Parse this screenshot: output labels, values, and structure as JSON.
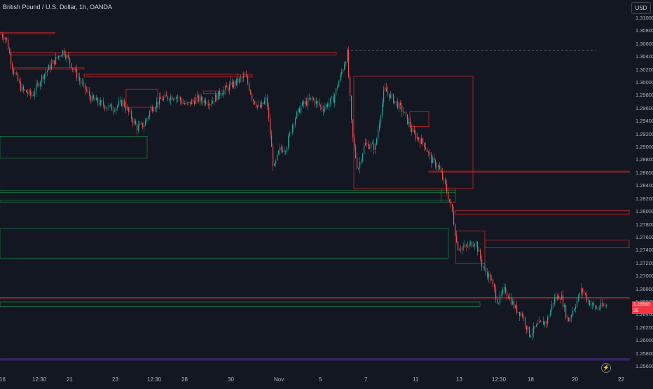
{
  "symbol_title": "British Pound / U.S. Dollar, 1h, OANDA",
  "currency": "USD",
  "current_price": "1.26568",
  "current_price_sub": "25",
  "bolt_icon": "lightning-icon",
  "colors": {
    "background": "#131722",
    "up": "#26a69a",
    "down": "#ef5350",
    "zone_red": "#e53935",
    "zone_green": "#1b8a4c",
    "bottom_line": "#5e35b1"
  },
  "chart_data": {
    "type": "candlestick",
    "title": "British Pound / U.S. Dollar, 1h, OANDA",
    "ylabel": "USD",
    "ylim": [
      1.2545,
      1.3125
    ],
    "y_ticks": [
      "1.31000",
      "1.30800",
      "1.30600",
      "1.30400",
      "1.30200",
      "1.30000",
      "1.29800",
      "1.29600",
      "1.29400",
      "1.29200",
      "1.29000",
      "1.28800",
      "1.28600",
      "1.28400",
      "1.28200",
      "1.28000",
      "1.27800",
      "1.27600",
      "1.27400",
      "1.27200",
      "1.27000",
      "1.26800",
      "1.26600",
      "1.26400",
      "1.26200",
      "1.26000",
      "1.25800",
      "1.25600"
    ],
    "x_ticks": [
      "16",
      "12:30",
      "21",
      "23",
      "12:30",
      "28",
      "30",
      "Nov",
      "5",
      "7",
      "11",
      "13",
      "12:30",
      "18",
      "20",
      "22"
    ],
    "grid": false,
    "trend_path": [
      [
        0,
        1.3075
      ],
      [
        8,
        1.307
      ],
      [
        18,
        1.302
      ],
      [
        30,
        1.299
      ],
      [
        45,
        1.298
      ],
      [
        60,
        1.301
      ],
      [
        78,
        1.3035
      ],
      [
        90,
        1.305
      ],
      [
        100,
        1.303
      ],
      [
        115,
        1.3
      ],
      [
        130,
        1.2975
      ],
      [
        148,
        1.2965
      ],
      [
        160,
        1.296
      ],
      [
        175,
        1.297
      ],
      [
        185,
        1.295
      ],
      [
        195,
        1.293
      ],
      [
        205,
        1.2935
      ],
      [
        215,
        1.296
      ],
      [
        230,
        1.2975
      ],
      [
        250,
        1.298
      ],
      [
        265,
        1.2965
      ],
      [
        280,
        1.2975
      ],
      [
        300,
        1.297
      ],
      [
        315,
        1.2985
      ],
      [
        335,
        1.3
      ],
      [
        350,
        1.301
      ],
      [
        360,
        1.2975
      ],
      [
        370,
        1.296
      ],
      [
        380,
        1.2975
      ],
      [
        390,
        1.2865
      ],
      [
        398,
        1.2895
      ],
      [
        408,
        1.29
      ],
      [
        418,
        1.294
      ],
      [
        430,
        1.2965
      ],
      [
        445,
        1.2975
      ],
      [
        460,
        1.296
      ],
      [
        475,
        1.2975
      ],
      [
        488,
        1.302
      ],
      [
        495,
        1.3045
      ],
      [
        502,
        1.292
      ],
      [
        510,
        1.2865
      ],
      [
        520,
        1.2905
      ],
      [
        535,
        1.29
      ],
      [
        548,
        1.299
      ],
      [
        560,
        1.2975
      ],
      [
        575,
        1.2955
      ],
      [
        590,
        1.292
      ],
      [
        605,
        1.2905
      ],
      [
        615,
        1.288
      ],
      [
        625,
        1.287
      ],
      [
        635,
        1.284
      ],
      [
        645,
        1.28
      ],
      [
        652,
        1.2745
      ],
      [
        665,
        1.2745
      ],
      [
        678,
        1.2755
      ],
      [
        688,
        1.2715
      ],
      [
        700,
        1.2695
      ],
      [
        710,
        1.266
      ],
      [
        720,
        1.268
      ],
      [
        735,
        1.265
      ],
      [
        745,
        1.264
      ],
      [
        755,
        1.261
      ],
      [
        768,
        1.2625
      ],
      [
        780,
        1.263
      ],
      [
        790,
        1.2665
      ],
      [
        800,
        1.267
      ],
      [
        810,
        1.263
      ],
      [
        820,
        1.2655
      ],
      [
        830,
        1.268
      ],
      [
        840,
        1.266
      ],
      [
        850,
        1.265
      ],
      [
        865,
        1.2655
      ]
    ],
    "zones": [
      {
        "color": "red",
        "x": [
          0,
          78
        ],
        "y": [
          1.3078,
          1.3076
        ]
      },
      {
        "color": "red",
        "x": [
          15,
          480
        ],
        "y": [
          1.3047,
          1.3043
        ]
      },
      {
        "color": "red",
        "x": [
          20,
          120
        ],
        "y": [
          1.3023,
          1.3021
        ]
      },
      {
        "color": "red",
        "x": [
          120,
          360
        ],
        "y": [
          1.3013,
          1.3009
        ]
      },
      {
        "color": "red",
        "x": [
          180,
          225
        ],
        "y": [
          1.299,
          1.2962
        ]
      },
      {
        "color": "red",
        "x": [
          290,
          320
        ],
        "y": [
          1.2987,
          1.2983
        ]
      },
      {
        "color": "red",
        "x": [
          505,
          675
        ],
        "y": [
          1.301,
          1.2836
        ]
      },
      {
        "color": "red",
        "x": [
          585,
          612
        ],
        "y": [
          1.2955,
          1.2932
        ]
      },
      {
        "color": "red",
        "x": [
          612,
          898
        ],
        "y": [
          1.2863,
          1.2861
        ]
      },
      {
        "color": "red",
        "x": [
          630,
          650
        ],
        "y": [
          1.2836,
          1.2815
        ]
      },
      {
        "color": "red",
        "x": [
          650,
          898
        ],
        "y": [
          1.2802,
          1.2796
        ]
      },
      {
        "color": "red",
        "x": [
          650,
          692
        ],
        "y": [
          1.277,
          1.272
        ]
      },
      {
        "color": "red",
        "x": [
          692,
          898
        ],
        "y": [
          1.2756,
          1.2744
        ]
      },
      {
        "color": "red",
        "x": [
          0,
          898
        ],
        "y": [
          1.2667,
          1.2665
        ]
      },
      {
        "color": "green",
        "x": [
          0,
          210
        ],
        "y": [
          1.2917,
          1.2883
        ]
      },
      {
        "color": "green",
        "x": [
          0,
          650
        ],
        "y": [
          1.2833,
          1.283
        ]
      },
      {
        "color": "green",
        "x": [
          0,
          640
        ],
        "y": [
          1.2818,
          1.2815
        ]
      },
      {
        "color": "green",
        "x": [
          0,
          640
        ],
        "y": [
          1.2774,
          1.2728
        ]
      },
      {
        "color": "green",
        "x": [
          0,
          685
        ],
        "y": [
          1.266,
          1.2653
        ]
      },
      {
        "color": "purple",
        "x": [
          0,
          898
        ],
        "y": [
          1.2572,
          1.257
        ]
      }
    ],
    "dashed_line": {
      "x": [
        495,
        850
      ],
      "y": 1.305
    }
  }
}
